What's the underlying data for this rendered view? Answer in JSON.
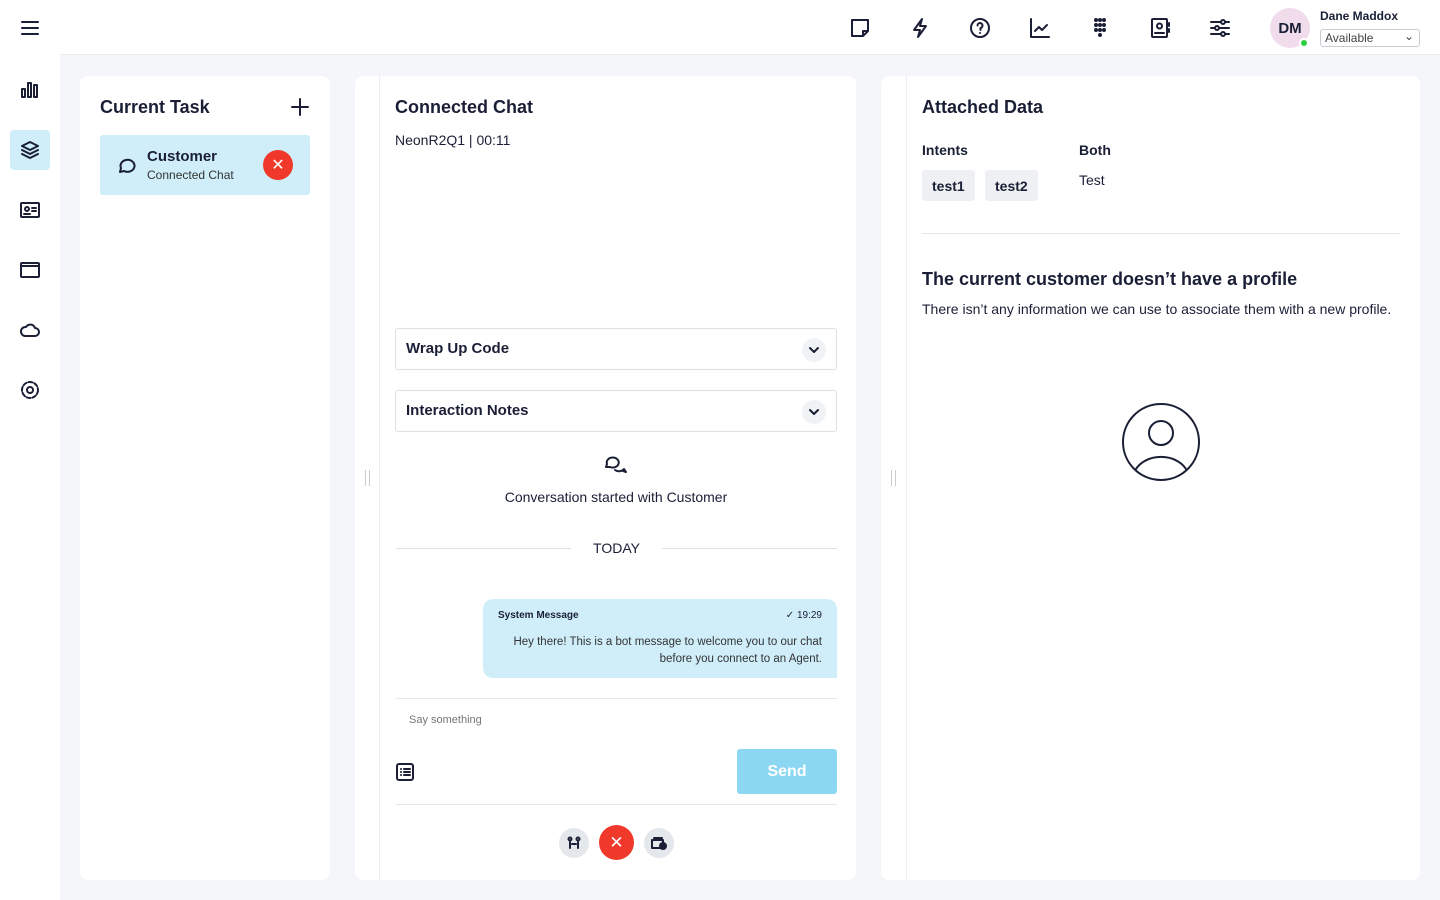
{
  "user": {
    "initials": "DM",
    "name": "Dane Maddox",
    "status": "Available",
    "status_color": "#2ecc40"
  },
  "topbar_icons": [
    "sticky-note-icon",
    "lightning-icon",
    "help-icon",
    "chart-line-icon",
    "dialpad-icon",
    "contacts-icon",
    "sliders-icon"
  ],
  "leftnav": [
    "menu-icon",
    "bar-chart-icon",
    "layers-icon",
    "id-card-icon",
    "window-icon",
    "cloud-icon",
    "gear-icon"
  ],
  "current_task": {
    "title": "Current Task",
    "item": {
      "name": "Customer",
      "type": "Connected Chat"
    }
  },
  "chat": {
    "title": "Connected Chat",
    "subtitle": "NeonR2Q1 | 00:11",
    "wrap_up": "Wrap Up Code",
    "notes": "Interaction Notes",
    "started": "Conversation started with Customer",
    "today": "TODAY",
    "message": {
      "sender": "System Message",
      "time": "19:29",
      "text": "Hey there! This is a bot message to welcome you to our chat before you connect to an Agent."
    },
    "placeholder": "Say something",
    "send": "Send"
  },
  "attached": {
    "title": "Attached Data",
    "intents_label": "Intents",
    "intents": [
      "test1",
      "test2"
    ],
    "both_label": "Both",
    "both_value": "Test",
    "profile_title": "The current customer doesn’t have a profile",
    "profile_text": "There isn’t any information we can use to associate them with a new profile."
  },
  "colors": {
    "accent": "#cfeefa",
    "danger": "#f0392b",
    "send": "#8cd8f2"
  }
}
